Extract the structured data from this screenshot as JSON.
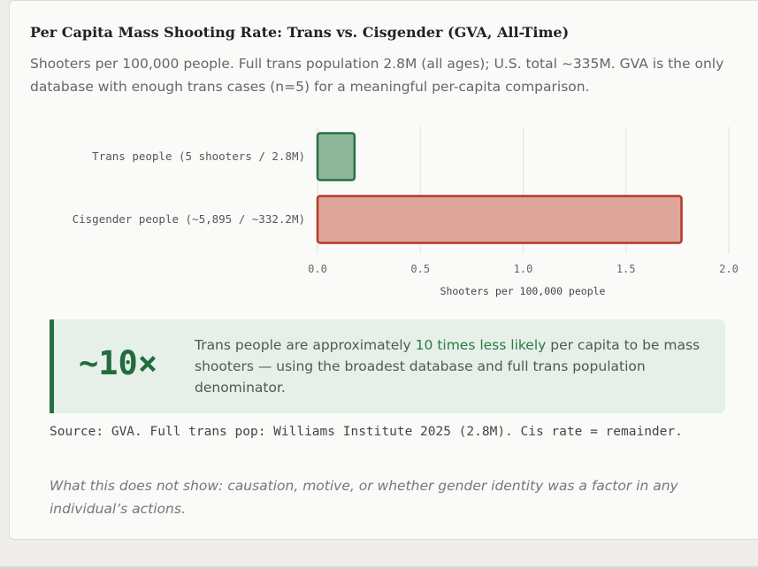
{
  "header": {
    "title": "Per Capita Mass Shooting Rate: Trans vs. Cisgender (GVA, All-Time)",
    "subtitle": "Shooters per 100,000 people. Full trans population 2.8M (all ages); U.S. total ~335M. GVA is the only database with enough trans cases (n=5) for a meaningful per-capita comparison."
  },
  "chart_data": {
    "type": "bar",
    "orientation": "horizontal",
    "categories": [
      "Trans people (5 shooters / 2.8M)",
      "Cisgender people (~5,895 / ~332.2M)"
    ],
    "values": [
      0.18,
      1.77
    ],
    "xlabel": "Shooters per 100,000 people",
    "ylabel": "",
    "xlim": [
      0,
      2.0
    ],
    "ticks": [
      "0.0",
      "0.5",
      "1.0",
      "1.5",
      "2.0"
    ],
    "grid": true,
    "colors": {
      "fills": [
        "#8fb89b",
        "#dea69a"
      ],
      "strokes": [
        "#2a6e44",
        "#b33a26"
      ]
    }
  },
  "callout": {
    "big_number": "~10×",
    "text_before": "Trans people are approximately ",
    "text_emphasis": "10 times less likely",
    "text_after": " per capita to be mass shooters — using the broadest database and full trans population denominator.",
    "accent_color": "#2a6e44"
  },
  "footer": {
    "source": "Source: GVA. Full trans pop: Williams Institute 2025 (2.8M). Cis rate = remainder.",
    "caveat": "What this does not show: causation, motive, or whether gender identity was a factor in any individual’s actions."
  }
}
